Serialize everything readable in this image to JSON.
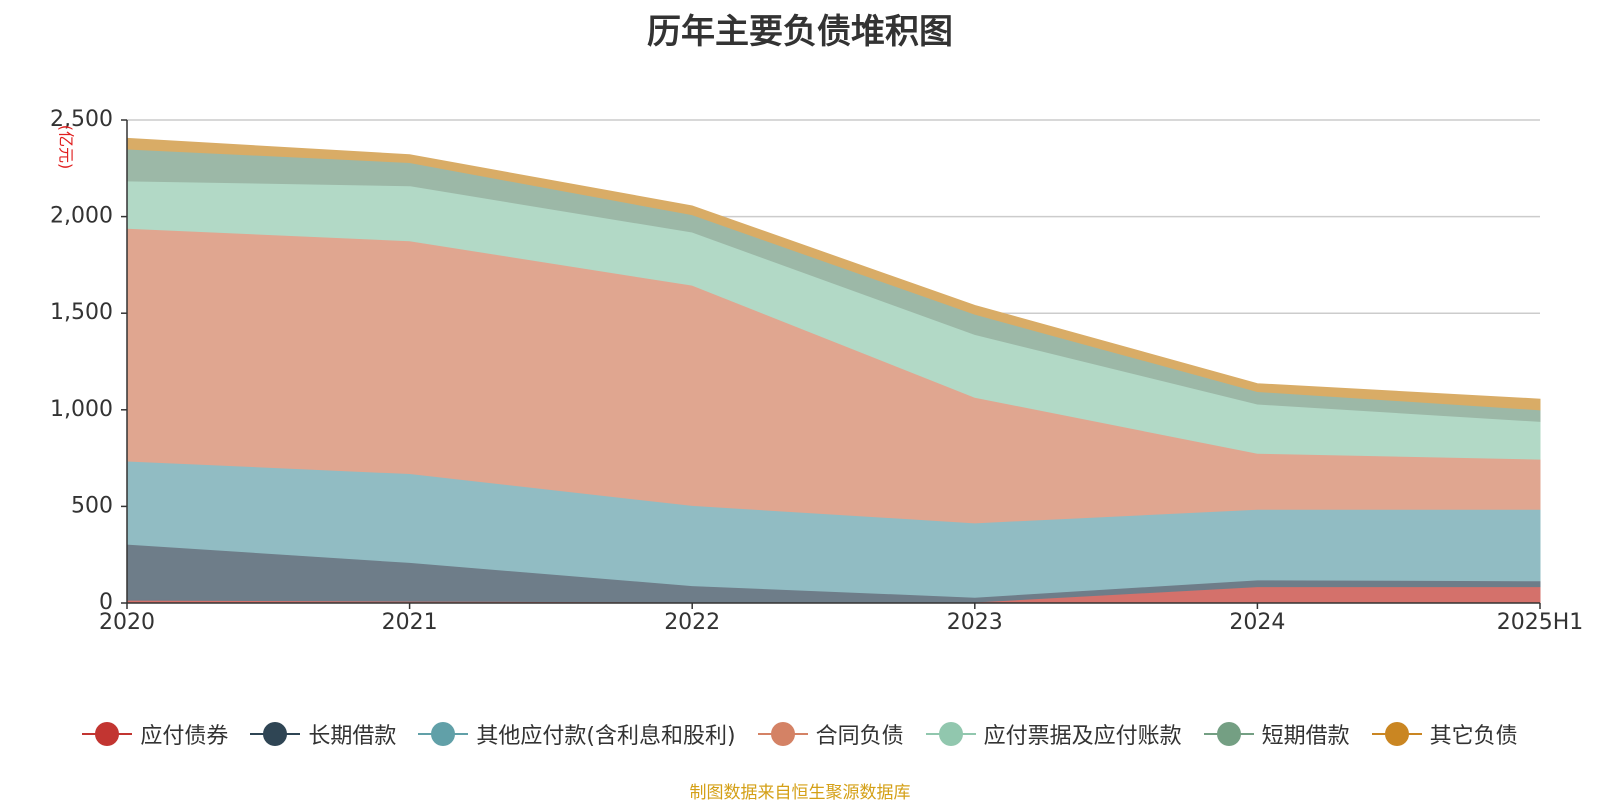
{
  "chart_data": {
    "type": "area",
    "stacked": true,
    "title": "历年主要负债堆积图",
    "ylabel": "(亿元)",
    "categories": [
      "2020",
      "2021",
      "2022",
      "2023",
      "2024",
      "2025H1"
    ],
    "ylim": [
      0,
      2500
    ],
    "yticks": [
      0,
      500,
      1000,
      1500,
      2000,
      2500
    ],
    "ytick_labels": [
      "0",
      "500",
      "1,000",
      "1,500",
      "2,000",
      "2,500"
    ],
    "grid": true,
    "legend_position": "bottom",
    "series": [
      {
        "name": "应付债券",
        "color": "#c23531",
        "fill": "#d4716b",
        "values": [
          15,
          10,
          5,
          5,
          85,
          85
        ]
      },
      {
        "name": "长期借款",
        "color": "#2f4554",
        "fill": "#6e7d89",
        "values": [
          290,
          200,
          85,
          25,
          35,
          30
        ]
      },
      {
        "name": "其他应付款(含利息和股利)",
        "color": "#61a0a8",
        "fill": "#91bcc3",
        "values": [
          430,
          460,
          415,
          385,
          365,
          370
        ]
      },
      {
        "name": "合同负债",
        "color": "#d48265",
        "fill": "#e0a690",
        "values": [
          1205,
          1205,
          1140,
          650,
          290,
          260
        ]
      },
      {
        "name": "应付票据及应付账款",
        "color": "#91c7ae",
        "fill": "#b2d9c6",
        "values": [
          245,
          285,
          275,
          325,
          255,
          195
        ]
      },
      {
        "name": "短期借款",
        "color": "#749f83",
        "fill": "#9cb8a7",
        "values": [
          165,
          120,
          90,
          105,
          65,
          60
        ]
      },
      {
        "name": "其它负债",
        "color": "#ca8622",
        "fill": "#d9ac66",
        "values": [
          55,
          40,
          45,
          45,
          40,
          55
        ]
      }
    ],
    "source": "制图数据来自恒生聚源数据库"
  }
}
